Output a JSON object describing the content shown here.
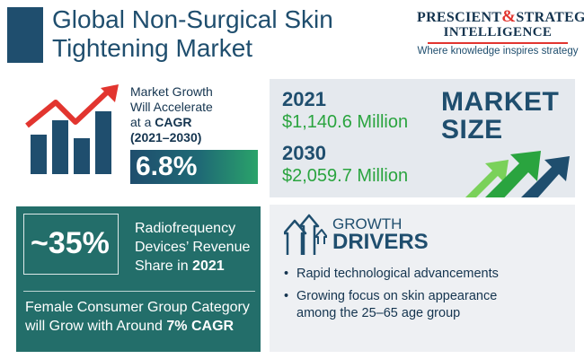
{
  "header": {
    "title_line1": "Global Non-Surgical Skin",
    "title_line2": "Tightening Market"
  },
  "logo": {
    "word1": "PRESCIENT",
    "amp": "&",
    "word2": "STRATEGIC",
    "line2": "INTELLIGENCE",
    "tagline": "Where knowledge inspires strategy"
  },
  "growth": {
    "line1": "Market Growth",
    "line2": "Will Accelerate",
    "line3_prefix": "at a ",
    "line3_bold": "CAGR",
    "line4": "(2021–2030)",
    "cagr_value": "6.8%"
  },
  "market_size": {
    "title_line1": "MARKET",
    "title_line2": "SIZE",
    "entries": [
      {
        "year": "2021",
        "value": "$1,140.6 Million"
      },
      {
        "year": "2030",
        "value": "$2,059.7 Million"
      }
    ]
  },
  "share": {
    "percent": "~35%",
    "line1": "Radiofrequency",
    "line2": "Devices’ Revenue",
    "line3_prefix": "Share in ",
    "line3_bold": "2021",
    "female_line1": "Female Consumer Group Category",
    "female_line2_prefix": "will Grow with Around ",
    "female_line2_bold": "7% CAGR"
  },
  "drivers": {
    "title_line1": "GROWTH",
    "title_line2": "DRIVERS",
    "items": [
      {
        "line1": "Rapid technological advancements",
        "line2": ""
      },
      {
        "line1": "Growing focus on skin appearance",
        "line2": "among the 25–65 age group"
      }
    ]
  },
  "colors": {
    "navy": "#1f4e6e",
    "green": "#2aa43f",
    "teal": "#236e6a",
    "red_accent": "#e2352f"
  }
}
